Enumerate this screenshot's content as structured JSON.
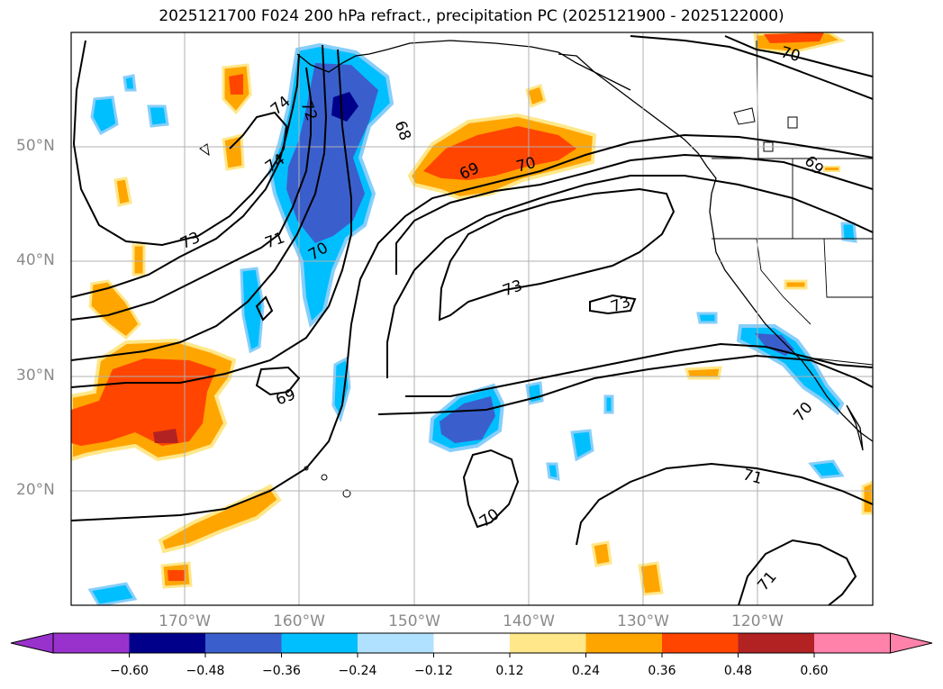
{
  "title": "2025121700 F024 200 hPa refract., precipitation PC (2025121900 - 2025122000)",
  "lat_labels": [
    "50°N",
    "40°N",
    "30°N",
    "20°N"
  ],
  "lon_labels": [
    "170°W",
    "160°W",
    "150°W",
    "140°W",
    "130°W",
    "120°W"
  ],
  "colorbar": {
    "labels": [
      "−0.60",
      "−0.48",
      "−0.36",
      "−0.24",
      "−0.12",
      "0.12",
      "0.24",
      "0.36",
      "0.48",
      "0.60"
    ],
    "colors": [
      "#9932cc",
      "#00008b",
      "#3a5fcd",
      "#00bfff",
      "#b0e2ff",
      "#ffffff",
      "#ffe78a",
      "#ffa500",
      "#ff4500",
      "#b22222",
      "#ff82ab"
    ]
  },
  "contour_labels": [
    "73",
    "71",
    "70",
    "74",
    "74",
    "72",
    "68",
    "69",
    "70",
    "73",
    "73",
    "69",
    "70",
    "71",
    "70",
    "71",
    "70",
    "69"
  ],
  "map_colors": {
    "grid": "#b0b0b0",
    "coast": "#000000",
    "contour": "#000000"
  }
}
